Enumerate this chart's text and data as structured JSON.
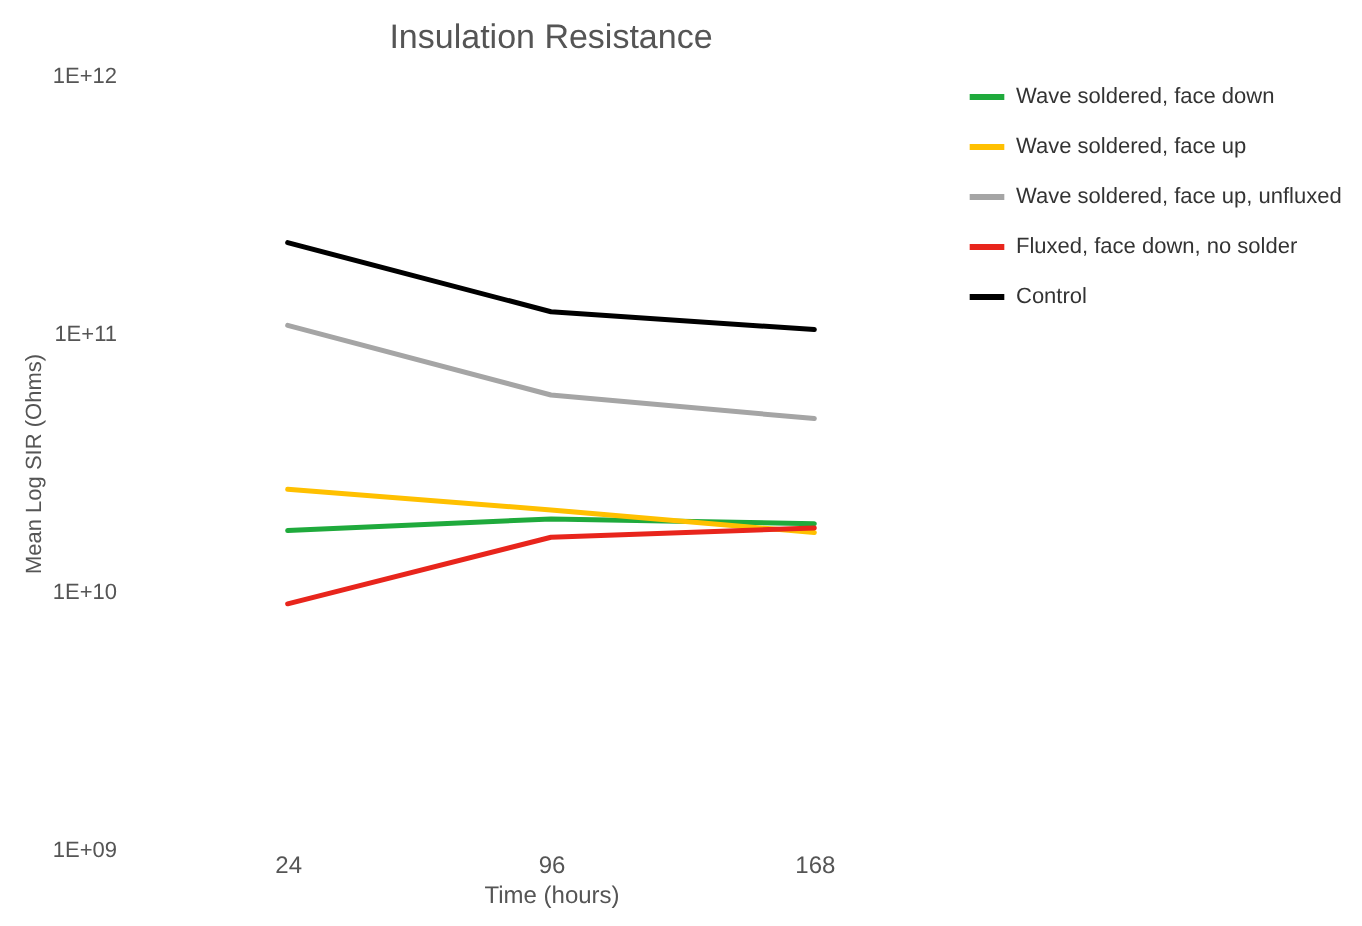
{
  "chart_data": {
    "type": "line",
    "title": "Insulation Resistance",
    "xlabel": "Time (hours)",
    "ylabel": "Mean Log SIR (Ohms)",
    "categories": [
      "24",
      "96",
      "168"
    ],
    "log": true,
    "ylim": [
      1000000000,
      1000000000000
    ],
    "yticks": [
      {
        "value": 1000000000,
        "label": "1E+09"
      },
      {
        "value": 10000000000,
        "label": "1E+10"
      },
      {
        "value": 100000000000,
        "label": "1E+11"
      },
      {
        "value": 1000000000000,
        "label": "1E+12"
      }
    ],
    "grid": false,
    "legend": "right",
    "marker": "none",
    "series": [
      {
        "name": "Wave soldered, face down",
        "color": "#1faa3c",
        "values": [
          17300000000,
          19200000000,
          18400000000
        ]
      },
      {
        "name": "Wave soldered, face up",
        "color": "#ffc000",
        "values": [
          25000000000,
          20800000000,
          17000000000
        ]
      },
      {
        "name": "Wave soldered, face up, unfluxed",
        "color": "#a5a5a5",
        "values": [
          108000000000,
          58000000000,
          47000000000
        ]
      },
      {
        "name": "Fluxed, face down, no solder",
        "color": "#e8251c",
        "values": [
          9000000000,
          16300000000,
          17700000000
        ]
      },
      {
        "name": "Control",
        "color": "#000000",
        "values": [
          226000000000,
          122000000000,
          104000000000
        ]
      }
    ]
  }
}
